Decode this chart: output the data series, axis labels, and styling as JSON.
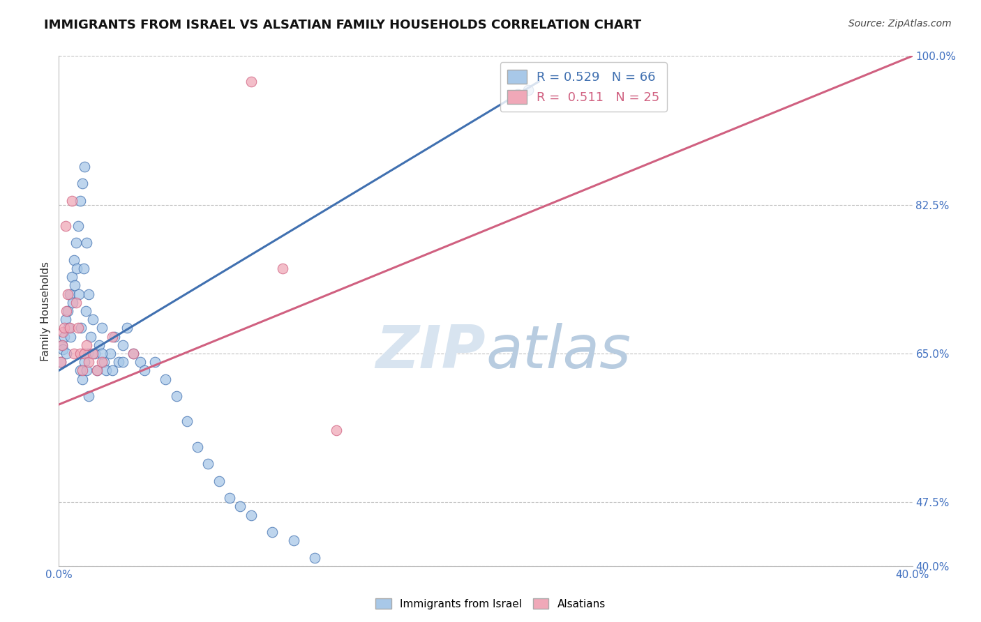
{
  "title": "IMMIGRANTS FROM ISRAEL VS ALSATIAN FAMILY HOUSEHOLDS CORRELATION CHART",
  "source": "Source: ZipAtlas.com",
  "ylabel": "Family Households",
  "xlim": [
    0.0,
    40.0
  ],
  "ylim": [
    40.0,
    100.0
  ],
  "yticks": [
    40.0,
    47.5,
    65.0,
    82.5,
    100.0
  ],
  "ytick_labels": [
    "40.0%",
    "47.5%",
    "65.0%",
    "82.5%",
    "100.0%"
  ],
  "xtick_labels": [
    "0.0%",
    "",
    "",
    "",
    "",
    "",
    "",
    "",
    "40.0%"
  ],
  "blue_R": 0.529,
  "blue_N": 66,
  "pink_R": 0.511,
  "pink_N": 25,
  "blue_color": "#A8C8E8",
  "pink_color": "#F0A8B8",
  "blue_line_color": "#4070B0",
  "pink_line_color": "#D06080",
  "background_color": "#ffffff",
  "watermark_color": "#D8E4F0",
  "title_fontsize": 13,
  "source_fontsize": 10,
  "tick_label_color": "#4070C0",
  "ylabel_color": "#333333",
  "legend_text_blue": "R = 0.529   N = 66",
  "legend_text_pink": "R =  0.511   N = 25",
  "blue_line_x0": 0.0,
  "blue_line_y0": 63.0,
  "blue_line_x1": 22.5,
  "blue_line_y1": 97.0,
  "pink_line_x0": 0.0,
  "pink_line_y0": 59.0,
  "pink_line_x1": 40.0,
  "pink_line_y1": 100.0,
  "blue_x": [
    0.1,
    0.15,
    0.2,
    0.25,
    0.3,
    0.35,
    0.4,
    0.45,
    0.5,
    0.55,
    0.6,
    0.65,
    0.7,
    0.75,
    0.8,
    0.85,
    0.9,
    0.95,
    1.0,
    1.05,
    1.1,
    1.15,
    1.2,
    1.25,
    1.3,
    1.35,
    1.4,
    1.5,
    1.6,
    1.7,
    1.8,
    1.9,
    2.0,
    2.1,
    2.2,
    2.4,
    2.6,
    2.8,
    3.0,
    3.2,
    3.5,
    3.8,
    4.0,
    4.5,
    5.0,
    5.5,
    6.0,
    6.5,
    7.0,
    7.5,
    8.0,
    8.5,
    9.0,
    10.0,
    11.0,
    12.0,
    1.0,
    1.1,
    1.2,
    1.3,
    1.4,
    2.0,
    2.5,
    3.0,
    21.5,
    22.0
  ],
  "blue_y": [
    64.0,
    66.0,
    65.5,
    67.0,
    69.0,
    65.0,
    70.0,
    68.0,
    72.0,
    67.0,
    74.0,
    71.0,
    76.0,
    73.0,
    78.0,
    75.0,
    80.0,
    72.0,
    83.0,
    68.0,
    85.0,
    75.0,
    87.0,
    70.0,
    78.0,
    65.0,
    72.0,
    67.0,
    69.0,
    65.0,
    63.0,
    66.0,
    68.0,
    64.0,
    63.0,
    65.0,
    67.0,
    64.0,
    66.0,
    68.0,
    65.0,
    64.0,
    63.0,
    64.0,
    62.0,
    60.0,
    57.0,
    54.0,
    52.0,
    50.0,
    48.0,
    47.0,
    46.0,
    44.0,
    43.0,
    41.0,
    63.0,
    62.0,
    64.0,
    63.0,
    60.0,
    65.0,
    63.0,
    64.0,
    95.5,
    96.0
  ],
  "pink_x": [
    0.1,
    0.15,
    0.2,
    0.25,
    0.3,
    0.35,
    0.4,
    0.5,
    0.6,
    0.7,
    0.8,
    0.9,
    1.0,
    1.1,
    1.2,
    1.3,
    1.4,
    1.6,
    1.8,
    2.0,
    2.5,
    3.5,
    9.0,
    10.5,
    13.0
  ],
  "pink_y": [
    64.0,
    66.0,
    67.5,
    68.0,
    80.0,
    70.0,
    72.0,
    68.0,
    83.0,
    65.0,
    71.0,
    68.0,
    65.0,
    63.0,
    65.0,
    66.0,
    64.0,
    65.0,
    63.0,
    64.0,
    67.0,
    65.0,
    97.0,
    75.0,
    56.0
  ]
}
